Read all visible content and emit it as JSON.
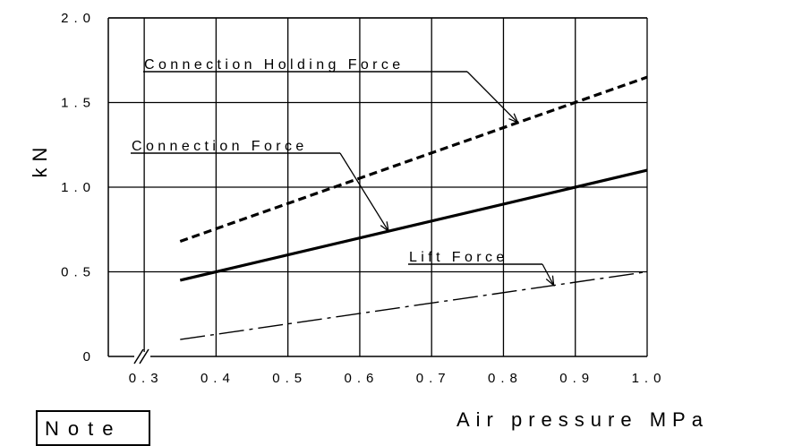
{
  "chart_data": {
    "type": "line",
    "xlabel": "Air pressure MPa",
    "ylabel": "kN",
    "xlim": [
      0.25,
      1.0
    ],
    "ylim": [
      0,
      2.0
    ],
    "x_ticks": [
      "0.3",
      "0.4",
      "0.5",
      "0.6",
      "0.7",
      "0.8",
      "0.9",
      "1.0"
    ],
    "y_ticks": [
      "0",
      "0.5",
      "1.0",
      "1.5",
      "2.0"
    ],
    "grid": true,
    "series": [
      {
        "name": "Connection Holding Force",
        "style": "dashed",
        "x": [
          0.35,
          1.0
        ],
        "y": [
          0.68,
          1.65
        ]
      },
      {
        "name": "Connection Force",
        "style": "solid",
        "x": [
          0.35,
          1.0
        ],
        "y": [
          0.45,
          1.1
        ]
      },
      {
        "name": "Lift Force",
        "style": "dash-dot",
        "x": [
          0.35,
          1.0
        ],
        "y": [
          0.1,
          0.5
        ]
      }
    ]
  },
  "note": {
    "label": "Note"
  }
}
